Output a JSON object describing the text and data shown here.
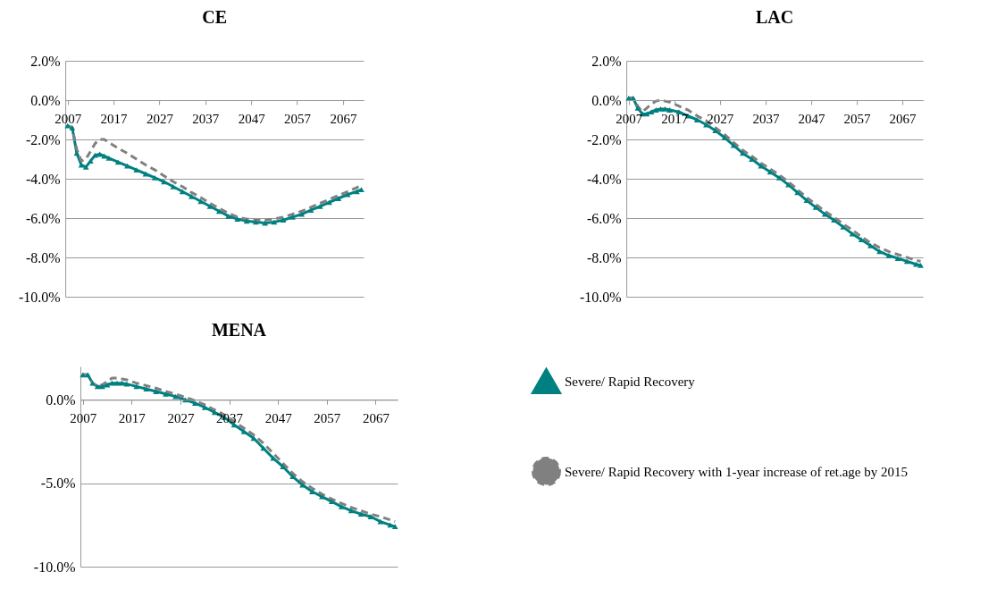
{
  "chart_data": [
    {
      "type": "line",
      "title": "CE",
      "x": [
        2007,
        2008,
        2009,
        2010,
        2011,
        2012,
        2013,
        2014,
        2015,
        2016,
        2018,
        2020,
        2022,
        2024,
        2026,
        2028,
        2030,
        2032,
        2034,
        2036,
        2038,
        2040,
        2042,
        2044,
        2046,
        2048,
        2050,
        2052,
        2054,
        2056,
        2058,
        2060,
        2062,
        2064,
        2066,
        2068,
        2070,
        2071
      ],
      "xlim": [
        2006.5,
        2071.5
      ],
      "xticks": [
        2007,
        2017,
        2027,
        2037,
        2047,
        2057,
        2067
      ],
      "ylim": [
        -10,
        2
      ],
      "yticks": [
        {
          "value": -10,
          "label": "-10.0%"
        },
        {
          "value": -8,
          "label": "-8.0%"
        },
        {
          "value": -6,
          "label": "-6.0%"
        },
        {
          "value": -4,
          "label": "-4.0%"
        },
        {
          "value": -2,
          "label": "-2.0%"
        },
        {
          "value": 0,
          "label": "0.0%"
        },
        {
          "value": 2,
          "label": "2.0%"
        }
      ],
      "grid": "y",
      "series": [
        {
          "color": "#008080",
          "line_style": "solid",
          "marker": "triangle",
          "values": [
            -1.3,
            -1.4,
            -2.7,
            -3.3,
            -3.4,
            -3.1,
            -2.8,
            -2.75,
            -2.85,
            -2.95,
            -3.15,
            -3.35,
            -3.55,
            -3.75,
            -3.95,
            -4.15,
            -4.4,
            -4.65,
            -4.9,
            -5.15,
            -5.4,
            -5.65,
            -5.9,
            -6.05,
            -6.15,
            -6.2,
            -6.25,
            -6.2,
            -6.1,
            -5.95,
            -5.8,
            -5.6,
            -5.4,
            -5.2,
            -5.0,
            -4.8,
            -4.65,
            -4.55
          ]
        },
        {
          "color": "#808080",
          "line_style": "dashed",
          "marker": "none",
          "values": [
            -1.3,
            -1.4,
            -2.5,
            -3.1,
            -3.0,
            -2.6,
            -2.2,
            -2.0,
            -2.0,
            -2.15,
            -2.45,
            -2.7,
            -3.0,
            -3.3,
            -3.55,
            -3.85,
            -4.15,
            -4.4,
            -4.7,
            -4.95,
            -5.25,
            -5.5,
            -5.75,
            -5.95,
            -6.05,
            -6.1,
            -6.1,
            -6.05,
            -5.95,
            -5.8,
            -5.65,
            -5.45,
            -5.25,
            -5.05,
            -4.85,
            -4.65,
            -4.45,
            -4.35
          ]
        }
      ]
    },
    {
      "type": "line",
      "title": "LAC",
      "x": [
        2007,
        2008,
        2009,
        2010,
        2011,
        2012,
        2013,
        2014,
        2015,
        2016,
        2018,
        2020,
        2022,
        2024,
        2026,
        2028,
        2030,
        2032,
        2034,
        2036,
        2038,
        2040,
        2042,
        2044,
        2046,
        2048,
        2050,
        2052,
        2054,
        2056,
        2058,
        2060,
        2062,
        2064,
        2066,
        2068,
        2070,
        2071
      ],
      "xlim": [
        2006.5,
        2071.5
      ],
      "xticks": [
        2007,
        2017,
        2027,
        2037,
        2047,
        2057,
        2067
      ],
      "ylim": [
        -10,
        2
      ],
      "yticks": [
        {
          "value": -10,
          "label": "-10.0%"
        },
        {
          "value": -8,
          "label": "-8.0%"
        },
        {
          "value": -6,
          "label": "-6.0%"
        },
        {
          "value": -4,
          "label": "-4.0%"
        },
        {
          "value": -2,
          "label": "-2.0%"
        },
        {
          "value": 0,
          "label": "0.0%"
        },
        {
          "value": 2,
          "label": "2.0%"
        }
      ],
      "grid": "y",
      "series": [
        {
          "color": "#008080",
          "line_style": "solid",
          "marker": "triangle",
          "values": [
            0.1,
            0.1,
            -0.4,
            -0.7,
            -0.7,
            -0.6,
            -0.5,
            -0.45,
            -0.45,
            -0.5,
            -0.6,
            -0.8,
            -1.0,
            -1.25,
            -1.55,
            -1.9,
            -2.3,
            -2.7,
            -3.0,
            -3.35,
            -3.65,
            -3.95,
            -4.3,
            -4.7,
            -5.1,
            -5.45,
            -5.8,
            -6.1,
            -6.45,
            -6.8,
            -7.1,
            -7.4,
            -7.7,
            -7.9,
            -8.05,
            -8.2,
            -8.35,
            -8.4
          ]
        },
        {
          "color": "#808080",
          "line_style": "dashed",
          "marker": "none",
          "values": [
            0.1,
            0.1,
            -0.3,
            -0.6,
            -0.4,
            -0.2,
            -0.05,
            0.0,
            -0.05,
            -0.1,
            -0.3,
            -0.5,
            -0.8,
            -1.05,
            -1.4,
            -1.75,
            -2.15,
            -2.55,
            -2.85,
            -3.2,
            -3.5,
            -3.8,
            -4.15,
            -4.55,
            -4.95,
            -5.3,
            -5.65,
            -5.95,
            -6.3,
            -6.6,
            -6.95,
            -7.25,
            -7.5,
            -7.7,
            -7.85,
            -8.0,
            -8.15,
            -8.2
          ]
        }
      ]
    },
    {
      "type": "line",
      "title": "MENA",
      "x": [
        2007,
        2008,
        2009,
        2010,
        2011,
        2012,
        2013,
        2014,
        2015,
        2016,
        2018,
        2020,
        2022,
        2024,
        2026,
        2028,
        2030,
        2032,
        2034,
        2036,
        2038,
        2040,
        2042,
        2044,
        2046,
        2048,
        2050,
        2052,
        2054,
        2056,
        2058,
        2060,
        2062,
        2064,
        2066,
        2068,
        2070,
        2071
      ],
      "xlim": [
        2006.5,
        2071.5
      ],
      "xticks": [
        2007,
        2017,
        2027,
        2037,
        2047,
        2057,
        2067
      ],
      "ylim": [
        -10,
        2
      ],
      "yticks": [
        {
          "value": -10,
          "label": "-10.0%"
        },
        {
          "value": -5,
          "label": "-5.0%"
        },
        {
          "value": 0,
          "label": "0.0%"
        }
      ],
      "grid": "y",
      "legend": "right",
      "series": [
        {
          "name": "Severe/ Rapid Recovery",
          "color": "#008080",
          "line_style": "solid",
          "marker": "triangle",
          "values": [
            1.5,
            1.5,
            1.0,
            0.8,
            0.8,
            0.9,
            1.0,
            1.0,
            1.0,
            0.95,
            0.8,
            0.65,
            0.5,
            0.35,
            0.2,
            0.0,
            -0.2,
            -0.45,
            -0.75,
            -1.05,
            -1.5,
            -1.9,
            -2.3,
            -2.9,
            -3.5,
            -4.0,
            -4.6,
            -5.1,
            -5.5,
            -5.8,
            -6.1,
            -6.4,
            -6.65,
            -6.85,
            -7.0,
            -7.3,
            -7.5,
            -7.6
          ]
        },
        {
          "name": "Severe/ Rapid Recovery with 1-year increase of ret.age by 2015",
          "color": "#808080",
          "line_style": "dashed",
          "marker": "none",
          "values": [
            1.5,
            1.5,
            1.0,
            0.8,
            0.9,
            1.1,
            1.3,
            1.3,
            1.25,
            1.2,
            1.0,
            0.85,
            0.7,
            0.5,
            0.35,
            0.15,
            -0.05,
            -0.3,
            -0.6,
            -0.9,
            -1.3,
            -1.7,
            -2.1,
            -2.6,
            -3.2,
            -3.8,
            -4.4,
            -4.9,
            -5.3,
            -5.65,
            -5.95,
            -6.2,
            -6.45,
            -6.65,
            -6.85,
            -7.0,
            -7.2,
            -7.3
          ]
        }
      ]
    }
  ]
}
